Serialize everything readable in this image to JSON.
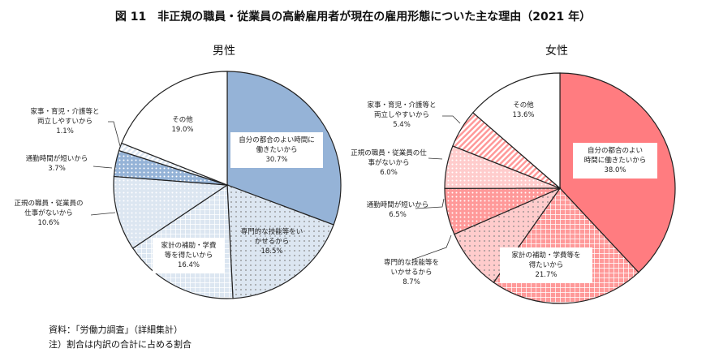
{
  "title": "図 11　非正規の職員・従業員の高齢雇用者が現在の雇用形態についた主な理由（2021 年）",
  "chart_data": [
    {
      "type": "pie",
      "title": "男性",
      "start": "top",
      "direction": "clockwise",
      "categories": [
        "自分の都合のよい時間に働きたいから",
        "専門的な技能等をいかせるから",
        "家計の補助・学費等を得たいから",
        "正規の職員・従業員の仕事がないから",
        "通勤時間が短いから",
        "家事・育児・介護等と両立しやすいから",
        "その他"
      ],
      "values": [
        30.7,
        18.5,
        16.4,
        10.6,
        3.7,
        1.1,
        19.0
      ],
      "labels": [
        "自分の都合のよい時間に\n働きたいから",
        "専門的な技能等をい\nかせるから",
        "家計の補助・学費\n等を得たいから",
        "正規の職員・従業員の\n仕事がないから",
        "通勤時間が短いから",
        "家事・育児・介護等と\n両立しやすいから",
        "その他"
      ],
      "value_labels": [
        "30.7%",
        "18.5%",
        "16.4%",
        "10.6%",
        "3.7%",
        "1.1%",
        "19.0%"
      ],
      "colors": [
        "#95b3d7",
        "#dce6f1",
        "#dce6f1",
        "#dce6f1",
        "#95b3d7",
        "#dce6f1",
        "#ffffff"
      ],
      "patterns": [
        "solid",
        "dots",
        "grid",
        "dots-dense",
        "dots-dense",
        "stripes",
        "none"
      ]
    },
    {
      "type": "pie",
      "title": "女性",
      "start": "top",
      "direction": "clockwise",
      "categories": [
        "自分の都合のよい時間に働きたいから",
        "家計の補助・学費等を得たいから",
        "専門的な技能等をいかせるから",
        "通勤時間が短いから",
        "正規の職員・従業員の仕事がないから",
        "家事・育児・介護等と両立しやすいから",
        "その他"
      ],
      "values": [
        38.0,
        21.7,
        8.7,
        6.5,
        6.0,
        5.4,
        13.6
      ],
      "labels": [
        "自分の都合のよい\n時間に働きたいから",
        "家計の補助・学費等を\n得たいから",
        "専門的な技能等を\nいかせるから",
        "通勤時間が短いから",
        "正規の職員・従業員の仕\n事がないから",
        "家事・育児・介護等と\n両立しやすいから",
        "その他"
      ],
      "value_labels": [
        "38.0%",
        "21.7%",
        "8.7%",
        "6.5%",
        "6.0%",
        "5.4%",
        "13.6%"
      ],
      "colors": [
        "#ff7c80",
        "#ff9999",
        "#ffcccc",
        "#ff9999",
        "#ffcccc",
        "#ff9999",
        "#ffffff"
      ],
      "patterns": [
        "solid",
        "grid",
        "dots",
        "dots-dense",
        "dots-dense",
        "stripes",
        "none"
      ]
    }
  ],
  "footnotes": [
    "資料：「労働力調査」（詳細集計）",
    "注）割合は内訳の合計に占める割合"
  ]
}
